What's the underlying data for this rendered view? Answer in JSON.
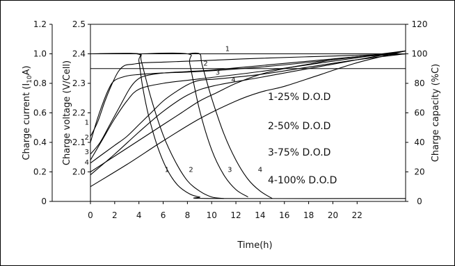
{
  "chart_data": {
    "type": "line",
    "title": "",
    "xlabel": "Time(h)",
    "xlim": [
      0,
      26
    ],
    "x_ticks": [
      "0",
      "2",
      "4",
      "6",
      "8",
      "10",
      "12",
      "14",
      "16",
      "18",
      "20",
      "22"
    ],
    "y_axes": {
      "current": {
        "label_pre": "Charge current (I",
        "label_sub": "10",
        "label_post": "A)",
        "ticks": [
          "0",
          "0.2",
          "0.4",
          "0.6",
          "0.8",
          "1.0",
          "1.2"
        ],
        "ylim": [
          0,
          1.2
        ]
      },
      "voltage": {
        "label": "Charge voltage (V/Cell)",
        "ticks": [
          "2.0",
          "2.1",
          "2.2",
          "2.3",
          "2.4",
          "2.5"
        ],
        "ylim": [
          1.9,
          2.5
        ]
      },
      "capacity": {
        "label": "Charge capacity (%C)",
        "ticks": [
          "0",
          "20",
          "40",
          "60",
          "80",
          "100",
          "120"
        ],
        "ylim": [
          0,
          120
        ]
      }
    },
    "legend": [
      "1-25% D.O.D",
      "2-50% D.O.D",
      "3-75% D.O.D",
      "4-100% D.O.D"
    ],
    "series": [
      {
        "label": "1",
        "axis": "current",
        "x": [
          0,
          3.8,
          4.0,
          4.3,
          4.8,
          5.5,
          6.3,
          7.2,
          8.2,
          9.0,
          10.0,
          26
        ],
        "y": [
          1.0,
          1.0,
          0.95,
          0.78,
          0.58,
          0.38,
          0.22,
          0.11,
          0.05,
          0.03,
          0.02,
          0.02
        ]
      },
      {
        "label": "2",
        "axis": "current",
        "x": [
          1.8,
          4.0,
          4.2,
          5.0,
          6.0,
          7.0,
          8.0,
          9.0,
          10.0,
          11.0
        ],
        "y": [
          1.0,
          1.0,
          0.95,
          0.7,
          0.45,
          0.27,
          0.14,
          0.07,
          0.03,
          0.02
        ]
      },
      {
        "label": "3",
        "axis": "current",
        "x": [
          4.0,
          8.0,
          8.2,
          9.0,
          10.0,
          11.0,
          12.0,
          13.0
        ],
        "y": [
          1.0,
          1.0,
          0.93,
          0.62,
          0.35,
          0.18,
          0.08,
          0.03
        ]
      },
      {
        "label": "4",
        "axis": "current",
        "x": [
          8.0,
          9.0,
          9.2,
          10.0,
          11.0,
          12.0,
          13.0,
          14.0,
          15.0
        ],
        "y": [
          1.0,
          1.0,
          0.93,
          0.7,
          0.46,
          0.28,
          0.15,
          0.07,
          0.02
        ]
      },
      {
        "label": "1",
        "axis": "voltage",
        "x": [
          0,
          0.6,
          1.2,
          1.8,
          2.3,
          2.8,
          3.5,
          4.5,
          6,
          8,
          10,
          14,
          18,
          22,
          26
        ],
        "y": [
          2.12,
          2.17,
          2.24,
          2.3,
          2.34,
          2.36,
          2.365,
          2.37,
          2.372,
          2.375,
          2.378,
          2.385,
          2.39,
          2.395,
          2.4
        ]
      },
      {
        "label": "2",
        "axis": "voltage",
        "x": [
          0,
          0.8,
          1.6,
          2.4,
          3.2,
          3.8,
          4.5,
          6,
          8,
          10,
          14,
          18,
          22,
          26
        ],
        "y": [
          2.06,
          2.1,
          2.16,
          2.22,
          2.28,
          2.31,
          2.325,
          2.335,
          2.34,
          2.345,
          2.36,
          2.375,
          2.39,
          2.4
        ]
      },
      {
        "label": "3",
        "axis": "voltage",
        "x": [
          0,
          1.0,
          2.0,
          3.0,
          4.0,
          5.0,
          6.0,
          7.0,
          8.0,
          9.0,
          10.5,
          14,
          18,
          22,
          26
        ],
        "y": [
          2.03,
          2.06,
          2.09,
          2.12,
          2.16,
          2.2,
          2.24,
          2.27,
          2.295,
          2.31,
          2.315,
          2.33,
          2.355,
          2.38,
          2.4
        ]
      },
      {
        "label": "4",
        "axis": "voltage",
        "x": [
          0,
          1.5,
          3.0,
          4.5,
          6.0,
          7.5,
          9.0,
          10.5,
          12.0,
          14.0,
          16.0,
          18.0,
          20.0,
          22.0,
          26
        ],
        "y": [
          2.0,
          2.04,
          2.08,
          2.12,
          2.16,
          2.2,
          2.24,
          2.27,
          2.3,
          2.33,
          2.35,
          2.365,
          2.38,
          2.39,
          2.4
        ]
      },
      {
        "label": "1",
        "axis": "capacity",
        "x": [
          0,
          0.5,
          1.0,
          1.5,
          2.0,
          3.0,
          4.0,
          6.0,
          9.0,
          14.0,
          20.0,
          26
        ],
        "y": [
          40,
          54,
          66,
          76,
          82,
          85,
          86,
          87,
          88,
          91,
          96,
          102
        ]
      },
      {
        "label": "2",
        "axis": "capacity",
        "x": [
          0,
          1.0,
          2.0,
          3.0,
          4.0,
          6.0,
          9.0,
          14.0,
          20.0,
          26
        ],
        "y": [
          28,
          42,
          56,
          68,
          76,
          80,
          83,
          88,
          95,
          102
        ]
      },
      {
        "label": "3",
        "axis": "capacity",
        "x": [
          0,
          2.0,
          4.0,
          6.0,
          8.0,
          10.0,
          14.0,
          20.0,
          26
        ],
        "y": [
          18,
          32,
          47,
          61,
          72,
          78,
          84,
          93,
          102
        ]
      },
      {
        "label": "4",
        "axis": "capacity",
        "x": [
          0,
          3.0,
          6.0,
          9.0,
          12.0,
          14.0,
          16.0,
          19.0,
          22.0,
          26
        ],
        "y": [
          10,
          25,
          41,
          56,
          68,
          74,
          78,
          86,
          94,
          102
        ]
      }
    ],
    "reference_lines": [
      {
        "axis": "current",
        "y": 1.0,
        "x": [
          0,
          26
        ]
      },
      {
        "axis": "capacity",
        "y": 90,
        "x": [
          0,
          26
        ]
      }
    ],
    "curve_labels": {
      "current": [
        {
          "text": "1",
          "x": 6.3,
          "y": 0.2
        },
        {
          "text": "2",
          "x": 8.3,
          "y": 0.2
        },
        {
          "text": "3",
          "x": 11.5,
          "y": 0.2
        },
        {
          "text": "4",
          "x": 14.0,
          "y": 0.2
        }
      ],
      "voltage": [
        {
          "text": "1",
          "x": 11.3,
          "y": 2.41
        },
        {
          "text": "2",
          "x": 9.5,
          "y": 2.36
        },
        {
          "text": "3",
          "x": 10.5,
          "y": 2.33
        },
        {
          "text": "4",
          "x": 11.8,
          "y": 2.305
        }
      ],
      "capacity": [
        {
          "text": "1",
          "x": -0.3,
          "y": 52
        },
        {
          "text": "2",
          "x": -0.3,
          "y": 42
        },
        {
          "text": "3",
          "x": -0.3,
          "y": 32
        },
        {
          "text": "4",
          "x": -0.3,
          "y": 25
        }
      ]
    }
  }
}
